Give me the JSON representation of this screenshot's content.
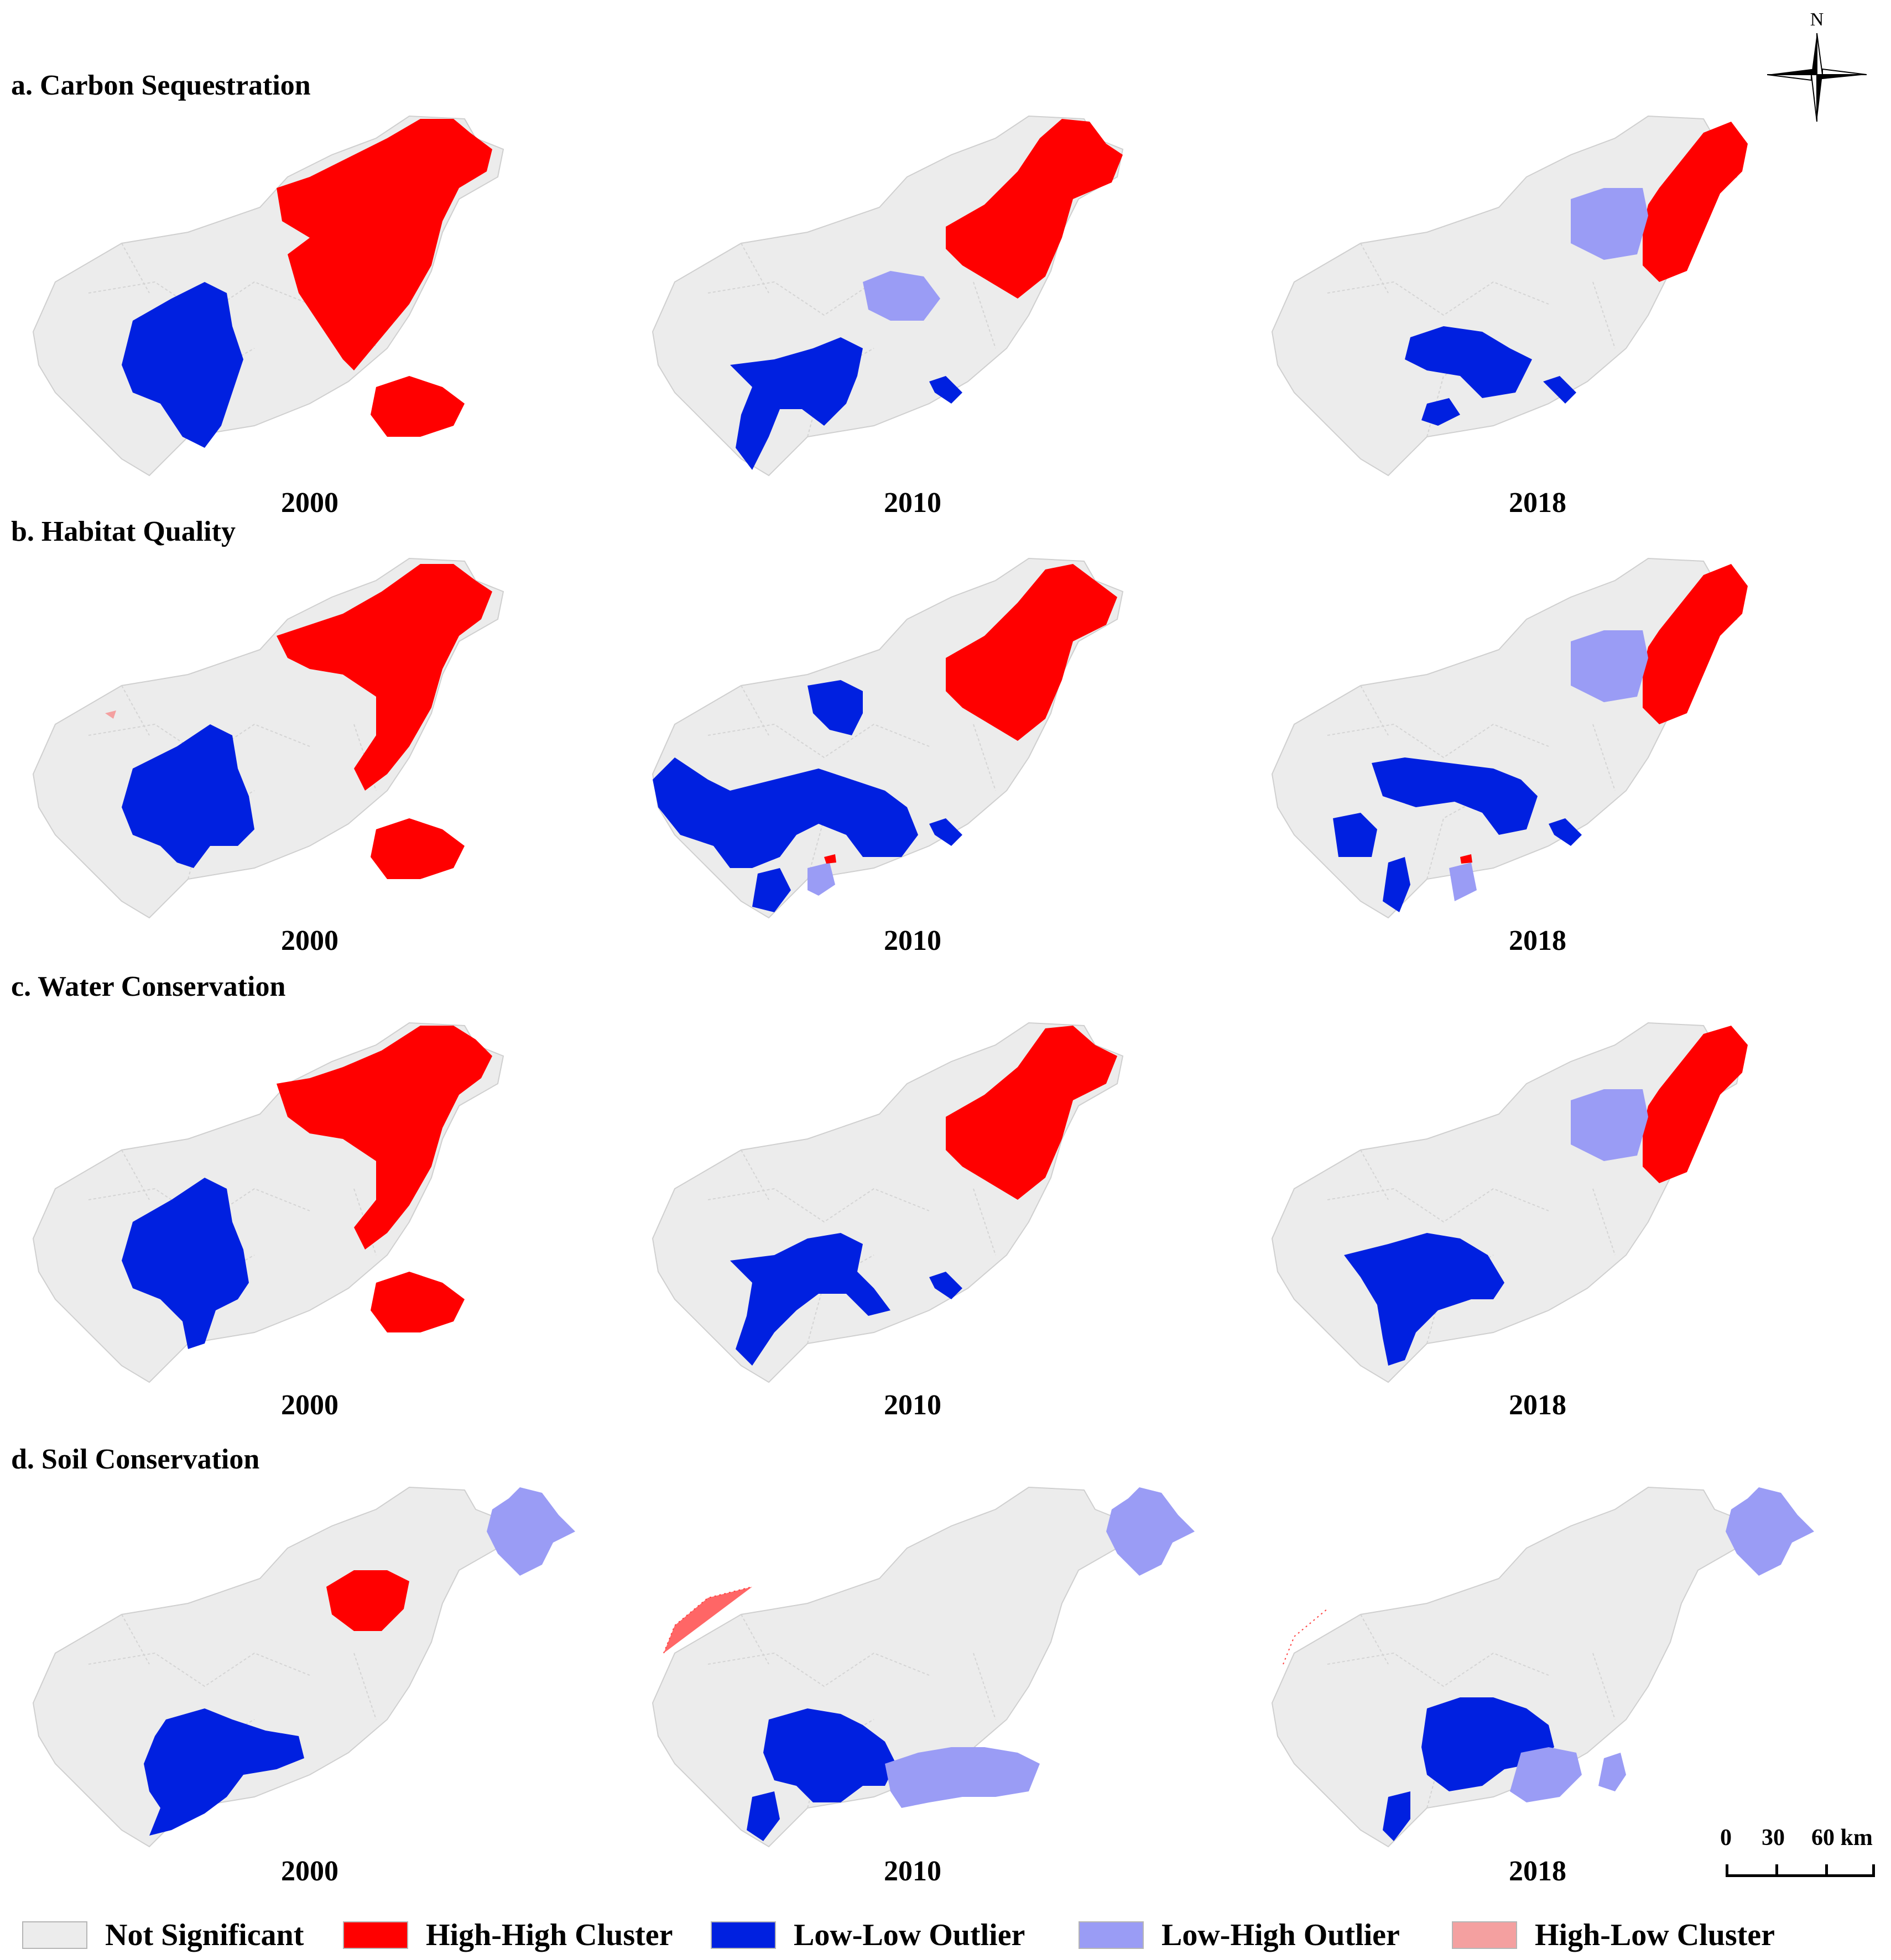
{
  "sections": [
    {
      "title": "a. Carbon Sequestration",
      "years": [
        "2000",
        "2010",
        "2018"
      ]
    },
    {
      "title": "b. Habitat Quality",
      "years": [
        "2000",
        "2010",
        "2018"
      ]
    },
    {
      "title": "c. Water Conservation",
      "years": [
        "2000",
        "2010",
        "2018"
      ]
    },
    {
      "title": "d. Soil Conservation",
      "years": [
        "2000",
        "2010",
        "2018"
      ]
    }
  ],
  "legend": [
    {
      "label": "Not Significant",
      "color": "#ececec"
    },
    {
      "label": "High-High Cluster",
      "color": "#ff0000"
    },
    {
      "label": "Low-Low Outlier",
      "color": "#0020e0"
    },
    {
      "label": "Low-High Outlier",
      "color": "#9a9cf5"
    },
    {
      "label": "High-Low Cluster",
      "color": "#f4a0a0"
    }
  ],
  "compass": {
    "north_label": "N"
  },
  "scale": {
    "labels": [
      "0",
      "30",
      "60 km"
    ]
  }
}
